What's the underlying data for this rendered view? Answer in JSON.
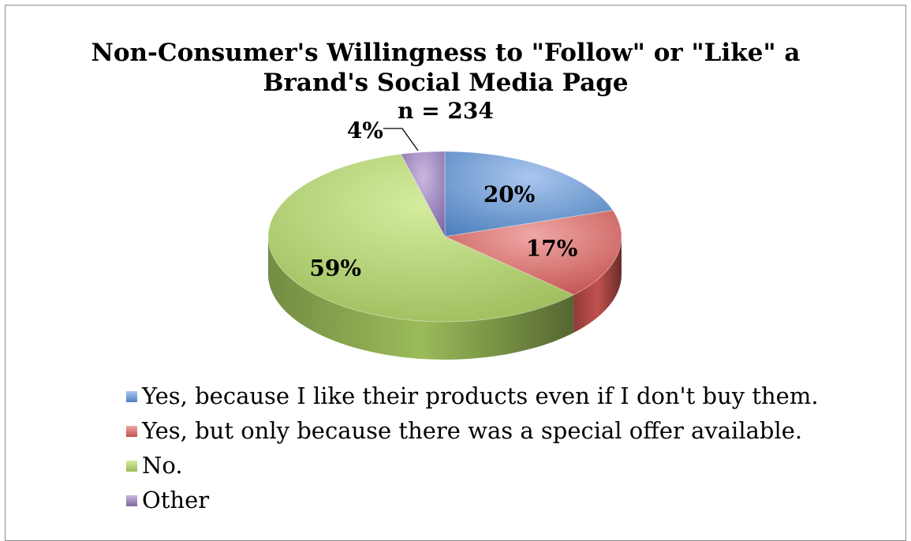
{
  "chart_data": {
    "type": "pie",
    "title": "Non-Consumer's Willingness to \"Follow\" or \"Like\" a Brand's Social Media Page",
    "title_lines": [
      "Non-Consumer's Willingness to \"Follow\" or \"Like\" a",
      "Brand's Social Media Page"
    ],
    "subtitle": "n = 234",
    "style": "3D",
    "legend_position": "bottom",
    "slices": [
      {
        "label": "Yes, because I like their products even if I don't buy them.",
        "value": 20,
        "display": "20%",
        "color": "#4f81bd",
        "light": "#a9c6ee"
      },
      {
        "label": "Yes, but only because there was a special offer available.",
        "value": 17,
        "display": "17%",
        "color": "#c0504d",
        "light": "#f0a7a5"
      },
      {
        "label": "No.",
        "value": 59,
        "display": "59%",
        "color": "#9bbb59",
        "light": "#d4ec9e"
      },
      {
        "label": "Other",
        "value": 4,
        "display": "4%",
        "color": "#8064a2",
        "light": "#c9b8e0"
      }
    ]
  }
}
